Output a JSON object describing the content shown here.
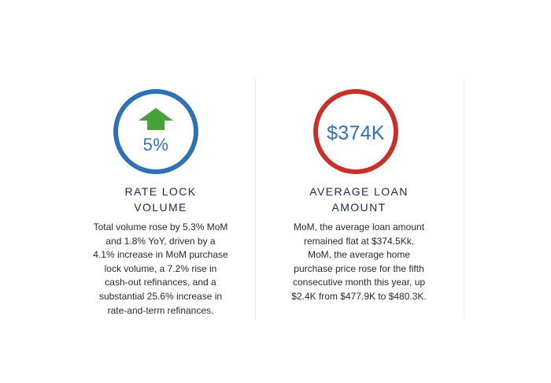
{
  "left_stat": {
    "value": "5%",
    "direction": "up",
    "arrow_color": "#4aa03a",
    "ring_color": "#2f72b3",
    "title_lines": [
      "RATE LOCK",
      "VOLUME"
    ],
    "body_lines": [
      "Total volume rose by 5.3% MoM",
      "and 1.8% YoY, driven by a",
      "4.1% increase in MoM purchase",
      "lock volume, a 7.2% rise in",
      "cash-out refinances, and a",
      "substantial 25.6% increase in",
      "rate-and-term refinances."
    ]
  },
  "right_stat": {
    "value": "$374K",
    "ring_color": "#c9302c",
    "title_lines": [
      "AVERAGE LOAN",
      "AMOUNT"
    ],
    "body_lines": [
      "MoM, the average loan amount",
      "remained flat at $374.5Kk.",
      "MoM, the average home",
      "purchase price rose for the fifth",
      "consecutive month this year, up",
      "$2.4K from $477.9K to $480.3K."
    ]
  }
}
